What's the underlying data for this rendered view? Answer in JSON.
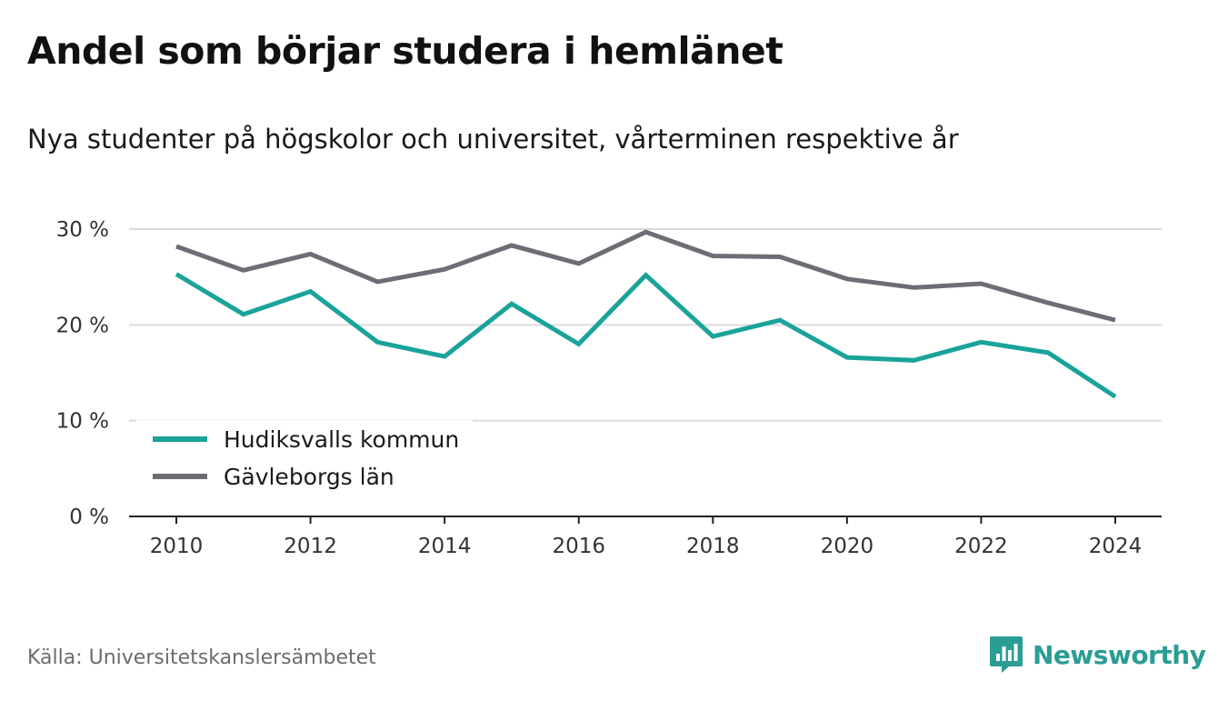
{
  "title": "Andel som börjar studera i hemlänet",
  "subtitle": "Nya studenter på högskolor och universitet, vårterminen respektive år",
  "source": "Källa: Universitetskanslersämbetet",
  "brand": {
    "name": "Newsworthy",
    "icon": "newsworthy-logo-icon",
    "color": "#2a9d94"
  },
  "chart_data": {
    "type": "line",
    "x": [
      2010,
      2011,
      2012,
      2013,
      2014,
      2015,
      2016,
      2017,
      2018,
      2019,
      2020,
      2021,
      2022,
      2023,
      2024
    ],
    "x_ticks": [
      "2010",
      "2012",
      "2014",
      "2016",
      "2018",
      "2020",
      "2022",
      "2024"
    ],
    "y_ticks": [
      "0 %",
      "10 %",
      "20 %",
      "30 %"
    ],
    "ylim": [
      0,
      30
    ],
    "grid": true,
    "legend_position": "bottom-left",
    "series": [
      {
        "name": "Hudiksvalls kommun",
        "color": "#1aa39a",
        "values": [
          25.3,
          21.1,
          23.5,
          18.2,
          16.7,
          22.2,
          18.0,
          25.2,
          18.8,
          20.5,
          16.6,
          16.3,
          18.2,
          17.1,
          12.5
        ]
      },
      {
        "name": "Gävleborgs län",
        "color": "#6e6c75",
        "values": [
          28.2,
          25.7,
          27.4,
          24.5,
          25.8,
          28.3,
          26.4,
          29.7,
          27.2,
          27.1,
          24.8,
          23.9,
          24.3,
          22.3,
          20.5
        ]
      }
    ]
  }
}
